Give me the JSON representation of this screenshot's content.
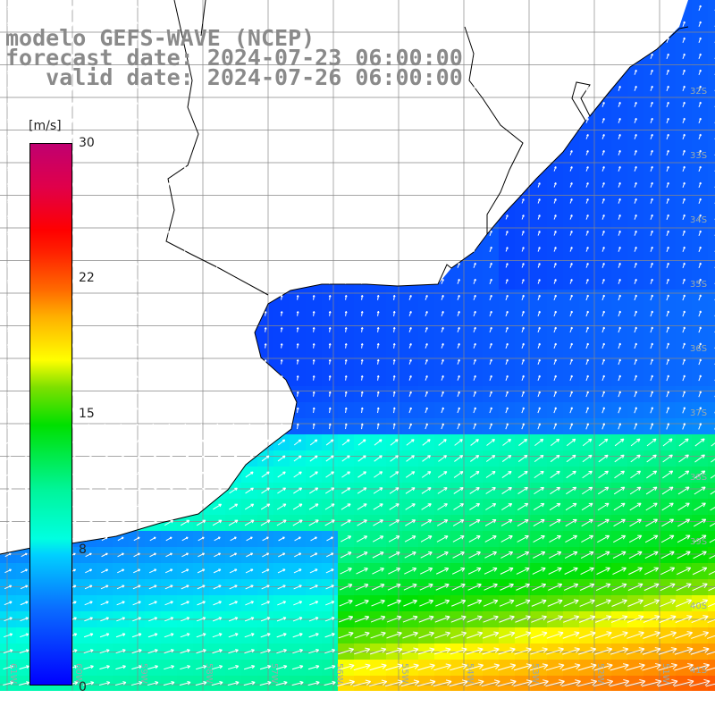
{
  "header": {
    "line1": "modelo GEFS-WAVE (NCEP)",
    "line2": "forecast date: 2024-07-23 06:00:00",
    "line3": "   valid date: 2024-07-26 06:00:00"
  },
  "colorbar": {
    "units": "[m/s]",
    "ticks": [
      "30",
      "22",
      "15",
      "8",
      "0"
    ],
    "tick_values": [
      30,
      22,
      15,
      8,
      0
    ]
  },
  "map": {
    "region": "South America – Uruguay / Rio de la Plata / Southern Brazil coast",
    "lat_labels": [
      "32S",
      "33S",
      "34S",
      "35S",
      "36S",
      "37S",
      "38S",
      "39S",
      "40S",
      "41S"
    ],
    "lon_labels": [
      "61W",
      "60W",
      "59W",
      "58W",
      "57W",
      "56W",
      "55W",
      "54W",
      "53W",
      "52W",
      "51W"
    ],
    "colors": {
      "land": "#ffffff",
      "coast": "#000000",
      "grid": "#888888",
      "arrow": "#ffffff",
      "label": "#8a8a8a"
    },
    "wind_field_description": "wind speed shading 0-30 m/s with white direction arrows"
  }
}
